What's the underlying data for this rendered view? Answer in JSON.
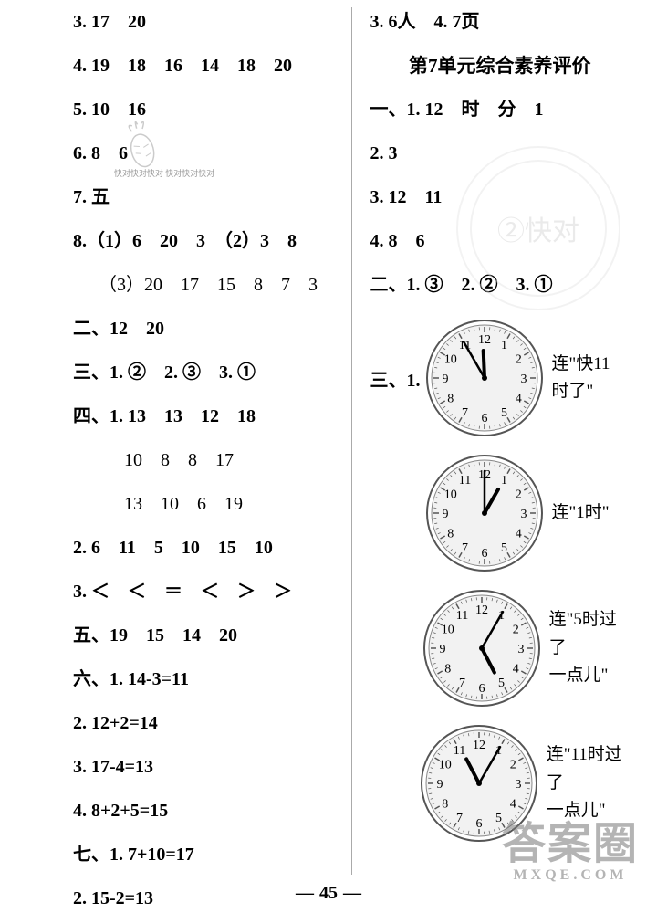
{
  "left": {
    "l3": "3. 17　20",
    "l4": "4. 19　18　16　14　18　20",
    "l5": "5. 10　16",
    "l6": "6. 8　6",
    "l7": "7. 五",
    "l8a": "8.（1）6　20　3　（2）3　8",
    "l8b": "（3）20　17　15　8　7　3",
    "s2": "二、12　20",
    "s3": "三、1. ②　2. ③　3. ①",
    "s4a": "四、1. 13　13　12　18",
    "s4b": "10　8　8　17",
    "s4c": "13　10　6　19",
    "s4_2": "2. 6　11　5　10　15　10",
    "s4_3": "3. ＜　＜　＝　＜　＞　＞",
    "s5": "五、19　15　14　20",
    "s6_1": "六、1. 14-3=11",
    "s6_2": "2. 12+2=14",
    "s6_3": "3. 17-4=13",
    "s6_4": "4. 8+2+5=15",
    "s7_1": "七、1. 7+10=17",
    "s7_2": "2. 15-2=13"
  },
  "right": {
    "top": "3. 6人　4. 7页",
    "title": "第7单元综合素养评价",
    "s1_1": "一、1. 12　时　分　1",
    "s1_2": "2. 3",
    "s1_3": "3. 12　11",
    "s1_4": "4. 8　6",
    "s2": "二、1. ③　2. ②　3. ①",
    "s3_label": "三、1.",
    "clocks": [
      {
        "hour": 11,
        "min": 55,
        "text1": "连\"快11",
        "text2": "时了\""
      },
      {
        "hour": 1,
        "min": 0,
        "text1": "连\"1时\"",
        "text2": ""
      },
      {
        "hour": 5,
        "min": 5,
        "text1": "连\"5时过了",
        "text2": "一点儿\""
      },
      {
        "hour": 11,
        "min": 5,
        "text1": "连\"11时过了",
        "text2": "一点儿\""
      }
    ]
  },
  "colors": {
    "bg": "#ffffff",
    "text": "#000000",
    "divider": "#aaaaaa",
    "clockFace": "#f2f2f2",
    "clockRing": "#555555",
    "clockHand": "#000000",
    "clockNum": "#000000"
  },
  "pageNumber": "45",
  "carrotText": "快对快对快对\n快对快对快对",
  "watermark": {
    "line1": "答案圈",
    "line2": "MXQE.COM"
  }
}
